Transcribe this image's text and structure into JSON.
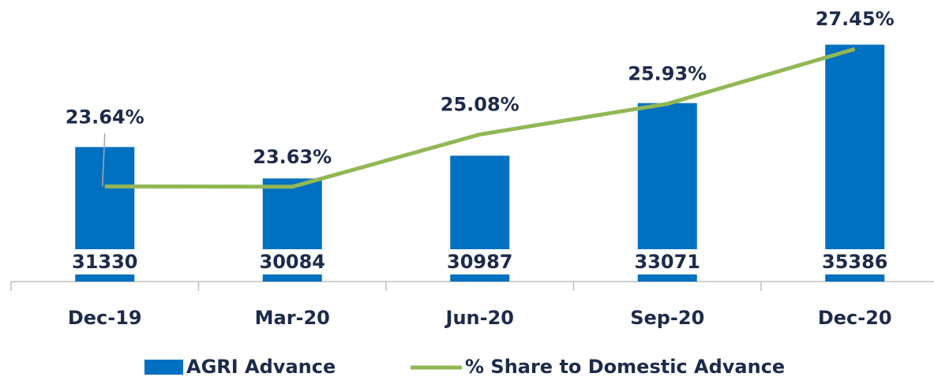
{
  "chart_data": {
    "type": "bar_line",
    "categories": [
      "Dec-19",
      "Mar-20",
      "Jun-20",
      "Sep-20",
      "Dec-20"
    ],
    "series": [
      {
        "name": "AGRI Advance",
        "type": "bar",
        "color": "#0070c0",
        "values": [
          31330,
          30084,
          30987,
          33071,
          35386
        ]
      },
      {
        "name": "% Share to Domestic Advance",
        "type": "line",
        "axis": "y2",
        "color": "#92b755",
        "values": [
          23.64,
          23.63,
          25.08,
          25.93,
          27.45
        ],
        "value_labels": [
          "23.64%",
          "23.63%",
          "25.08%",
          "25.93%",
          "27.45%"
        ]
      }
    ],
    "ylim": [
      26000,
      36000
    ],
    "y2lim": [
      21,
      28
    ],
    "legend": "bottom"
  }
}
